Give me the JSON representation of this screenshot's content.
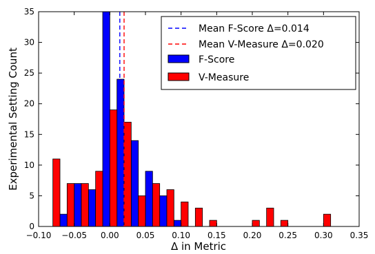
{
  "chart_data": {
    "type": "bar",
    "xlabel": "Δ in Metric",
    "ylabel": "Experimental Setting Count",
    "xlim": [
      -0.1,
      0.35
    ],
    "ylim": [
      0,
      35
    ],
    "xticks": [
      "−0.10",
      "−0.05",
      "0.00",
      "0.05",
      "0.10",
      "0.15",
      "0.20",
      "0.25",
      "0.30",
      "0.35"
    ],
    "xtick_values": [
      -0.1,
      -0.05,
      0.0,
      0.05,
      0.1,
      0.15,
      0.2,
      0.25,
      0.3,
      0.35
    ],
    "yticks": [
      "0",
      "5",
      "10",
      "15",
      "20",
      "25",
      "30",
      "35"
    ],
    "ytick_values": [
      0,
      5,
      10,
      15,
      20,
      25,
      30,
      35
    ],
    "bin_edges": [
      -0.09,
      -0.07,
      -0.05,
      -0.03,
      -0.01,
      0.01,
      0.03,
      0.05,
      0.07,
      0.09,
      0.11,
      0.13,
      0.15,
      0.17,
      0.19,
      0.21,
      0.23,
      0.25,
      0.27,
      0.29,
      0.31
    ],
    "series": [
      {
        "name": "F-Score",
        "color": "#0000ff",
        "values": [
          0,
          2,
          7,
          6,
          35,
          24,
          14,
          9,
          5,
          1,
          0,
          0,
          0,
          0,
          0,
          0,
          0,
          0,
          0,
          0
        ]
      },
      {
        "name": "V-Measure",
        "color": "#ff0000",
        "values": [
          11,
          7,
          7,
          9,
          19,
          17,
          5,
          7,
          6,
          4,
          3,
          1,
          0,
          0,
          1,
          3,
          1,
          0,
          0,
          2
        ]
      }
    ],
    "mean_lines": [
      {
        "name": "Mean F-Score Δ=0.014",
        "value": 0.014,
        "color": "#0000ff"
      },
      {
        "name": "Mean V-Measure Δ=0.020",
        "value": 0.02,
        "color": "#ff0000"
      }
    ],
    "legend_position": "top-right",
    "grid": false
  }
}
